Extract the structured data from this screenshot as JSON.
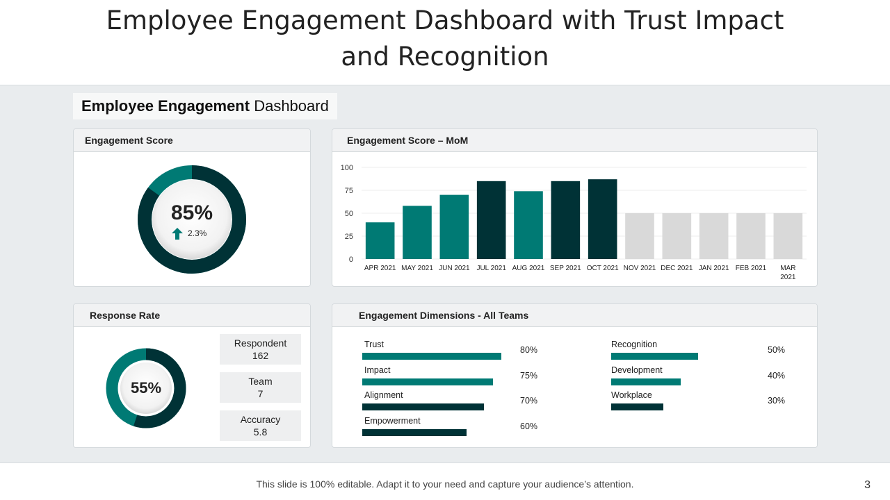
{
  "slide": {
    "title_line1": "Employee Engagement Dashboard with Trust Impact",
    "title_line2": "and Recognition",
    "heading_bold": "Employee Engagement",
    "heading_rest": " Dashboard",
    "footer": "This slide is 100% editable. Adapt it to your need and capture your audience’s attention.",
    "page_number": "3"
  },
  "colors": {
    "teal": "#007a74",
    "dark": "#003236",
    "grey": "#d9d9d9",
    "ring_bg": "#f4f4f4"
  },
  "engagement_score": {
    "title": "Engagement Score",
    "value_text": "85%",
    "value": 85,
    "change_text": "2.3%",
    "change_icon": "arrow-up-icon"
  },
  "response_rate": {
    "title": "Response Rate",
    "value_text": "55%",
    "value": 55,
    "stats": [
      {
        "label": "Respondent",
        "value": "162"
      },
      {
        "label": "Team",
        "value": "7"
      },
      {
        "label": "Accuracy",
        "value": "5.8"
      }
    ]
  },
  "dimensions": {
    "title": "Engagement Dimensions - All  Teams",
    "left": [
      {
        "label": "Trust",
        "pct_text": "80%",
        "pct": 80,
        "color": "teal"
      },
      {
        "label": "Impact",
        "pct_text": "75%",
        "pct": 75,
        "color": "teal"
      },
      {
        "label": "Alignment",
        "pct_text": "70%",
        "pct": 70,
        "color": "dark"
      },
      {
        "label": "Empowerment",
        "pct_text": "60%",
        "pct": 60,
        "color": "dark"
      }
    ],
    "right": [
      {
        "label": "Recognition",
        "pct_text": "50%",
        "pct": 50,
        "color": "teal"
      },
      {
        "label": "Development",
        "pct_text": "40%",
        "pct": 40,
        "color": "teal"
      },
      {
        "label": "Workplace",
        "pct_text": "30%",
        "pct": 30,
        "color": "dark"
      }
    ]
  },
  "chart_data": {
    "type": "bar",
    "title": "Engagement Score – MoM",
    "categories": [
      "APR 2021",
      "MAY 2021",
      "JUN 2021",
      "JUL 2021",
      "AUG 2021",
      "SEP 2021",
      "OCT 2021",
      "NOV 2021",
      "DEC 2021",
      "JAN 2021",
      "FEB 2021",
      "MAR 2021"
    ],
    "values": [
      40,
      58,
      70,
      85,
      74,
      85,
      87,
      50,
      50,
      50,
      50,
      50
    ],
    "bar_colors": [
      "#007a74",
      "#007a74",
      "#007a74",
      "#003236",
      "#007a74",
      "#003236",
      "#003236",
      "#d9d9d9",
      "#d9d9d9",
      "#d9d9d9",
      "#d9d9d9",
      "#d9d9d9"
    ],
    "ylim": [
      0,
      100
    ],
    "yticks": [
      0,
      25,
      50,
      75,
      100
    ],
    "xlabel": "",
    "ylabel": "",
    "grid": true
  }
}
